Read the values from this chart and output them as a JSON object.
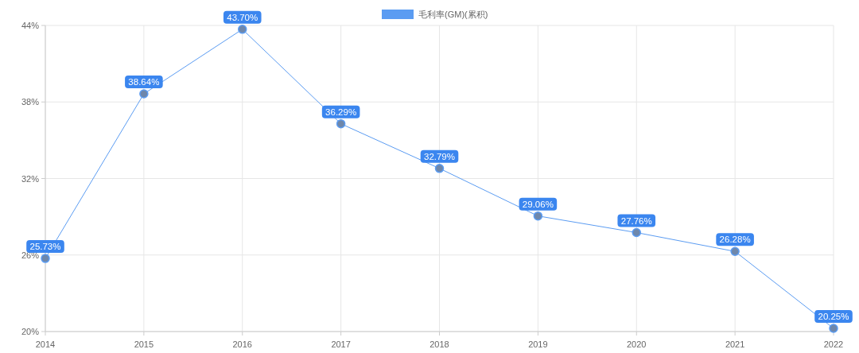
{
  "chart_data": {
    "type": "line",
    "categories": [
      "2014",
      "2015",
      "2016",
      "2017",
      "2018",
      "2019",
      "2020",
      "2021",
      "2022"
    ],
    "series": [
      {
        "name": "毛利率(GM)(累积)",
        "color": "#5b9cf2",
        "values": [
          25.73,
          38.64,
          43.7,
          36.29,
          32.79,
          29.06,
          27.76,
          26.28,
          20.25
        ],
        "value_labels": [
          "25.73%",
          "38.64%",
          "43.70%",
          "36.29%",
          "32.79%",
          "29.06%",
          "27.76%",
          "26.28%",
          "20.25%"
        ]
      }
    ],
    "ylim": [
      20,
      44
    ],
    "yticks": [
      {
        "value": 20,
        "label": "20%"
      },
      {
        "value": 26,
        "label": "26%"
      },
      {
        "value": 32,
        "label": "32%"
      },
      {
        "value": 38,
        "label": "38%"
      },
      {
        "value": 44,
        "label": "44%"
      }
    ],
    "grid": true,
    "legend": "top",
    "marker": "circle",
    "line_style": "solid"
  }
}
